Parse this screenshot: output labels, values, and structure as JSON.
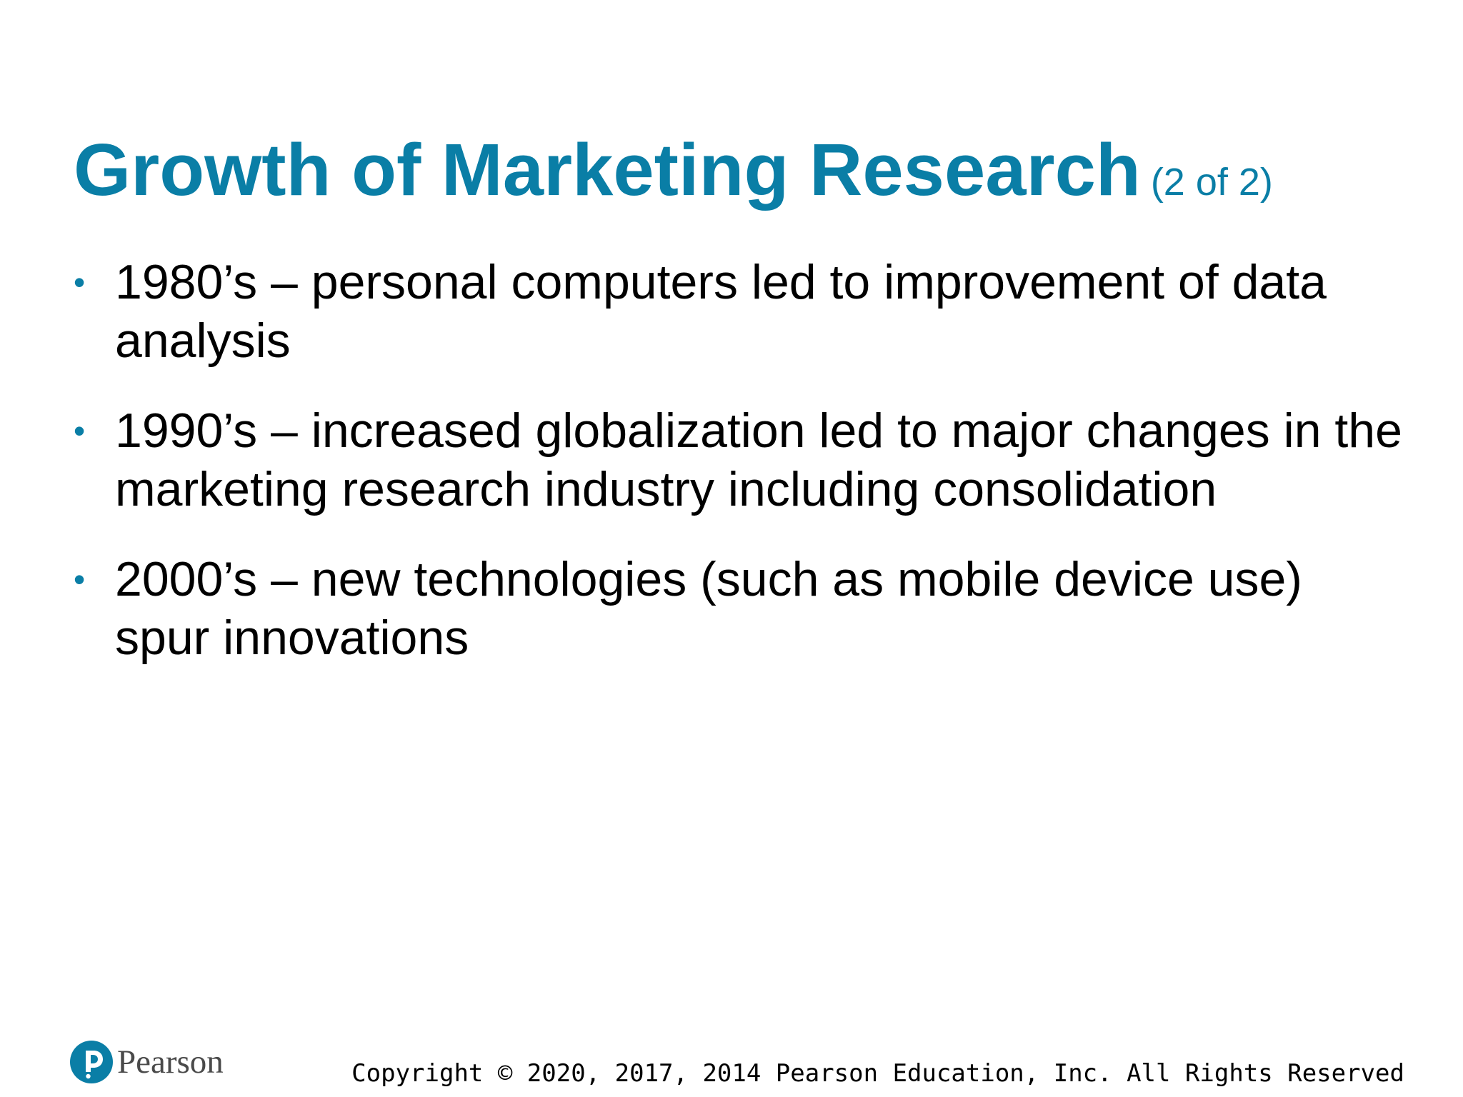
{
  "slide": {
    "title": "Growth of Marketing Research",
    "title_suffix": "(2 of 2)",
    "bullets": [
      "1980’s – personal computers led to improvement of data analysis",
      "1990’s – increased globalization led to major changes in the marketing research industry including consolidation",
      "2000’s – new technologies (such as mobile device use) spur innovations"
    ]
  },
  "footer": {
    "logo_text": "Pearson",
    "logo_icon": "pearson-p-icon",
    "copyright": "Copyright © 2020, 2017, 2014 Pearson Education, Inc. All Rights Reserved"
  },
  "colors": {
    "accent": "#0a7ea6",
    "text": "#000000",
    "background": "#ffffff"
  }
}
